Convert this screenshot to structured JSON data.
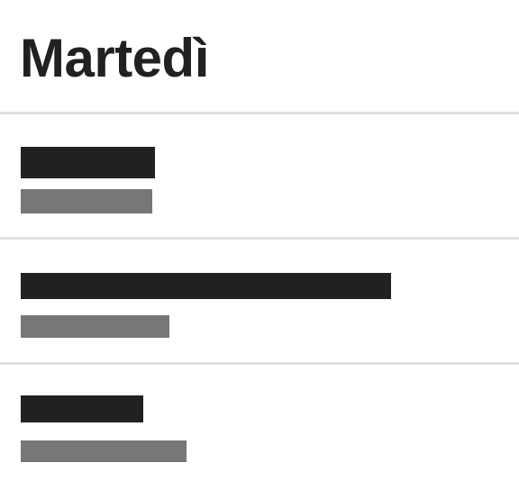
{
  "header": {
    "title": "Martedì"
  },
  "list": {
    "items": [
      {
        "primary": "",
        "secondary": ""
      },
      {
        "primary": "",
        "secondary": ""
      },
      {
        "primary": "",
        "secondary": ""
      }
    ]
  }
}
